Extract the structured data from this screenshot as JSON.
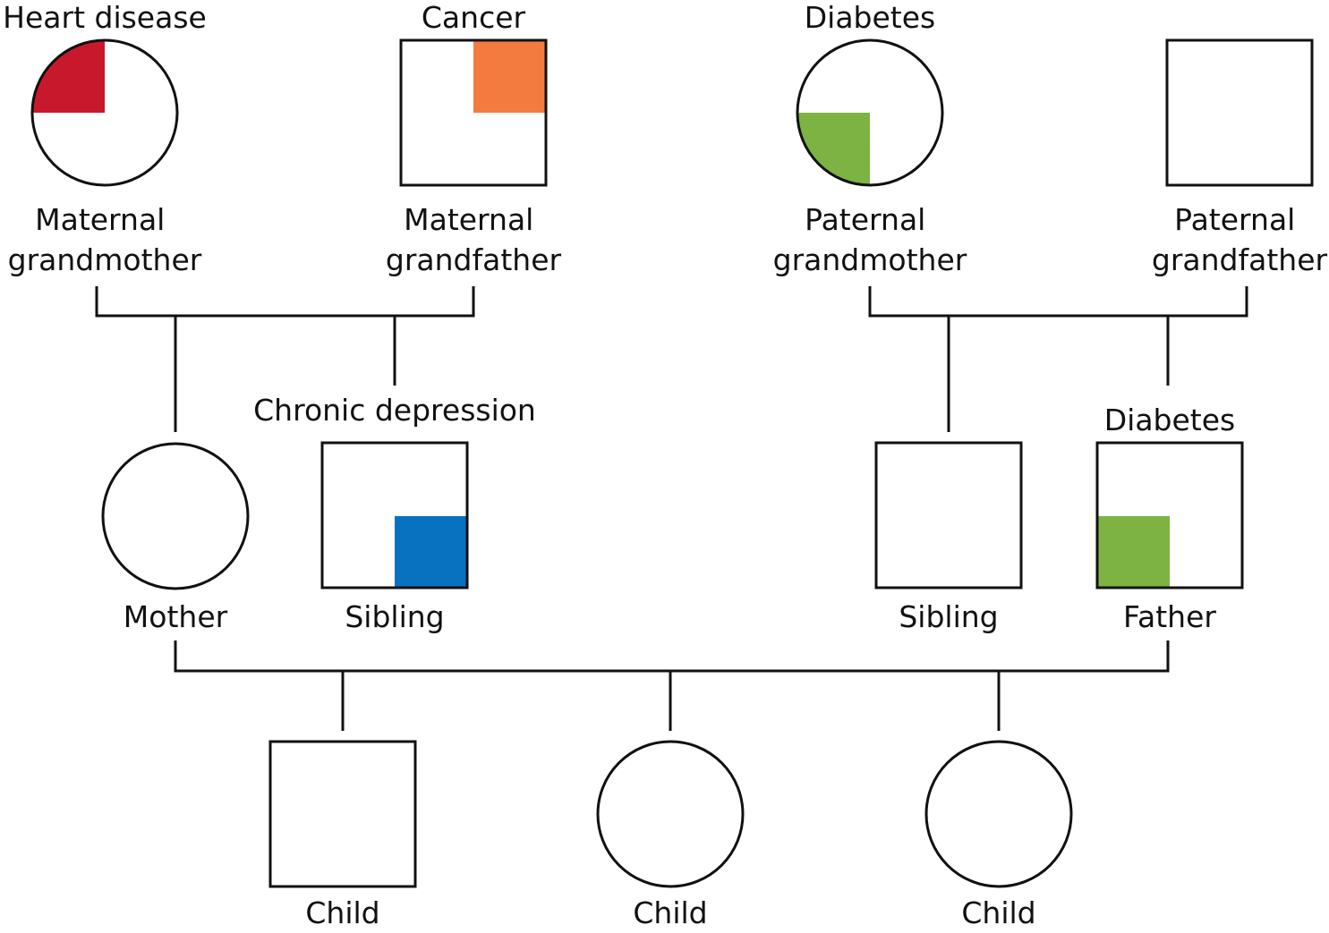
{
  "colors": {
    "heart_disease": "#c8192c",
    "cancer": "#f47b40",
    "diabetes": "#7cb342",
    "chronic_depression": "#0872c0"
  },
  "people": {
    "maternal_grandmother": {
      "sex": "female",
      "label_line1": "Maternal",
      "label_line2": "grandmother",
      "condition": "Heart disease",
      "marked_quadrant": "top-left",
      "color_key": "heart_disease"
    },
    "maternal_grandfather": {
      "sex": "male",
      "label_line1": "Maternal",
      "label_line2": "grandfather",
      "condition": "Cancer",
      "marked_quadrant": "top-right",
      "color_key": "cancer"
    },
    "paternal_grandmother": {
      "sex": "female",
      "label_line1": "Paternal",
      "label_line2": "grandmother",
      "condition": "Diabetes",
      "marked_quadrant": "bottom-left",
      "color_key": "diabetes"
    },
    "paternal_grandfather": {
      "sex": "male",
      "label_line1": "Paternal",
      "label_line2": "grandfather"
    },
    "mother": {
      "sex": "female",
      "label": "Mother"
    },
    "maternal_sibling": {
      "sex": "male",
      "label": "Sibling",
      "condition": "Chronic depression",
      "marked_quadrant": "bottom-right",
      "color_key": "chronic_depression"
    },
    "paternal_sibling": {
      "sex": "male",
      "label": "Sibling"
    },
    "father": {
      "sex": "male",
      "label": "Father",
      "condition": "Diabetes",
      "marked_quadrant": "bottom-left",
      "color_key": "diabetes"
    },
    "child_1": {
      "sex": "male",
      "label": "Child"
    },
    "child_2": {
      "sex": "female",
      "label": "Child"
    },
    "child_3": {
      "sex": "female",
      "label": "Child"
    }
  }
}
